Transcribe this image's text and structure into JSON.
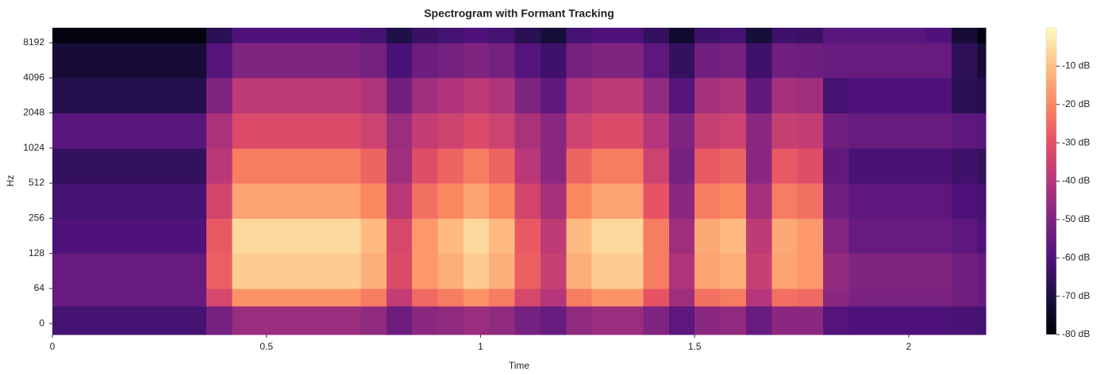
{
  "chart_data": {
    "type": "heatmap",
    "title": "Spectrogram with Formant Tracking",
    "xlabel": "Time",
    "ylabel": "Hz",
    "colormap": "magma",
    "yscale": "symlog",
    "linthresh": 64,
    "xlim": [
      0,
      2.18
    ],
    "ylim": [
      -20,
      11025
    ],
    "xticks": [
      0,
      0.5,
      1,
      1.5,
      2
    ],
    "yticks": [
      0,
      64,
      128,
      256,
      512,
      1024,
      2048,
      4096,
      8192
    ],
    "clim": [
      -80,
      0
    ],
    "cticks": [
      {
        "value": -10,
        "label": "-10 dB"
      },
      {
        "value": -20,
        "label": "-20 dB"
      },
      {
        "value": -30,
        "label": "-30 dB"
      },
      {
        "value": -40,
        "label": "-40 dB"
      },
      {
        "value": -50,
        "label": "-50 dB"
      },
      {
        "value": -60,
        "label": "-60 dB"
      },
      {
        "value": -70,
        "label": "-70 dB"
      },
      {
        "value": -80,
        "label": "-80 dB"
      }
    ],
    "x_edges": [
      0,
      0.06,
      0.12,
      0.18,
      0.24,
      0.3,
      0.36,
      0.42,
      0.48,
      0.54,
      0.6,
      0.66,
      0.72,
      0.78,
      0.84,
      0.9,
      0.96,
      1.02,
      1.08,
      1.14,
      1.2,
      1.26,
      1.32,
      1.38,
      1.44,
      1.5,
      1.56,
      1.62,
      1.68,
      1.74,
      1.8,
      1.86,
      1.92,
      1.98,
      2.04,
      2.1,
      2.16,
      2.18
    ],
    "y_edges": [
      -20,
      32,
      64,
      128,
      256,
      512,
      1024,
      2048,
      4096,
      8192,
      11025
    ],
    "z": [
      [
        -62,
        -62,
        -62,
        -62,
        -62,
        -62,
        -52,
        -45,
        -45,
        -45,
        -45,
        -45,
        -47,
        -54,
        -48,
        -47,
        -45,
        -47,
        -52,
        -55,
        -47,
        -45,
        -45,
        -50,
        -57,
        -48,
        -47,
        -55,
        -48,
        -48,
        -59,
        -60,
        -60,
        -60,
        -60,
        -61,
        -62
      ],
      [
        -55,
        -55,
        -55,
        -55,
        -55,
        -55,
        -33,
        -18,
        -18,
        -18,
        -18,
        -18,
        -22,
        -37,
        -25,
        -22,
        -18,
        -22,
        -33,
        -40,
        -22,
        -18,
        -18,
        -29,
        -44,
        -24,
        -22,
        -40,
        -24,
        -25,
        -48,
        -51,
        -51,
        -51,
        -51,
        -53,
        -55
      ],
      [
        -55,
        -55,
        -55,
        -55,
        -55,
        -55,
        -27,
        -8,
        -8,
        -8,
        -8,
        -8,
        -13,
        -32,
        -17,
        -13,
        -8,
        -13,
        -27,
        -36,
        -13,
        -8,
        -8,
        -22,
        -41,
        -15,
        -13,
        -36,
        -15,
        -17,
        -46,
        -50,
        -50,
        -50,
        -50,
        -53,
        -55
      ],
      [
        -60,
        -60,
        -60,
        -60,
        -60,
        -60,
        -28,
        -6,
        -6,
        -6,
        -6,
        -6,
        -11,
        -33,
        -17,
        -11,
        -6,
        -11,
        -28,
        -38,
        -11,
        -6,
        -6,
        -22,
        -44,
        -14,
        -11,
        -38,
        -14,
        -17,
        -49,
        -55,
        -55,
        -55,
        -55,
        -57,
        -60
      ],
      [
        -62,
        -62,
        -62,
        -62,
        -62,
        -62,
        -34,
        -15,
        -15,
        -15,
        -15,
        -15,
        -20,
        -39,
        -24,
        -20,
        -15,
        -20,
        -34,
        -43,
        -20,
        -15,
        -15,
        -29,
        -48,
        -22,
        -20,
        -43,
        -22,
        -24,
        -53,
        -57,
        -57,
        -57,
        -57,
        -60,
        -62
      ],
      [
        -65,
        -65,
        -65,
        -65,
        -65,
        -65,
        -39,
        -22,
        -22,
        -22,
        -22,
        -22,
        -26,
        -44,
        -31,
        -26,
        -22,
        -26,
        -39,
        -48,
        -26,
        -22,
        -22,
        -35,
        -52,
        -28,
        -26,
        -48,
        -28,
        -31,
        -56,
        -61,
        -61,
        -61,
        -61,
        -63,
        -65
      ],
      [
        -58,
        -58,
        -58,
        -58,
        -58,
        -58,
        -42,
        -32,
        -32,
        -32,
        -32,
        -32,
        -35,
        -45,
        -37,
        -35,
        -32,
        -35,
        -42,
        -48,
        -35,
        -32,
        -32,
        -40,
        -50,
        -36,
        -35,
        -48,
        -36,
        -37,
        -53,
        -55,
        -55,
        -55,
        -55,
        -57,
        -58
      ],
      [
        -68,
        -68,
        -68,
        -68,
        -68,
        -68,
        -50,
        -38,
        -38,
        -38,
        -38,
        -38,
        -41,
        -53,
        -44,
        -41,
        -38,
        -41,
        -50,
        -56,
        -41,
        -38,
        -38,
        -47,
        -59,
        -43,
        -41,
        -56,
        -43,
        -44,
        -62,
        -60,
        -60,
        -60,
        -60,
        -67,
        -68
      ],
      [
        -72,
        -72,
        -72,
        -72,
        -72,
        -72,
        -59,
        -50,
        -50,
        -50,
        -50,
        -50,
        -52,
        -61,
        -54,
        -52,
        -50,
        -52,
        -59,
        -63,
        -52,
        -50,
        -50,
        -57,
        -65,
        -53,
        -52,
        -63,
        -53,
        -54,
        -55,
        -55,
        -55,
        -55,
        -55,
        -66,
        -72
      ],
      [
        -78,
        -78,
        -78,
        -78,
        -78,
        -78,
        -67,
        -60,
        -60,
        -60,
        -60,
        -60,
        -62,
        -69,
        -64,
        -62,
        -60,
        -62,
        -67,
        -71,
        -62,
        -60,
        -60,
        -65,
        -73,
        -63,
        -62,
        -71,
        -63,
        -64,
        -58,
        -58,
        -58,
        -58,
        -60,
        -72,
        -78
      ]
    ]
  }
}
